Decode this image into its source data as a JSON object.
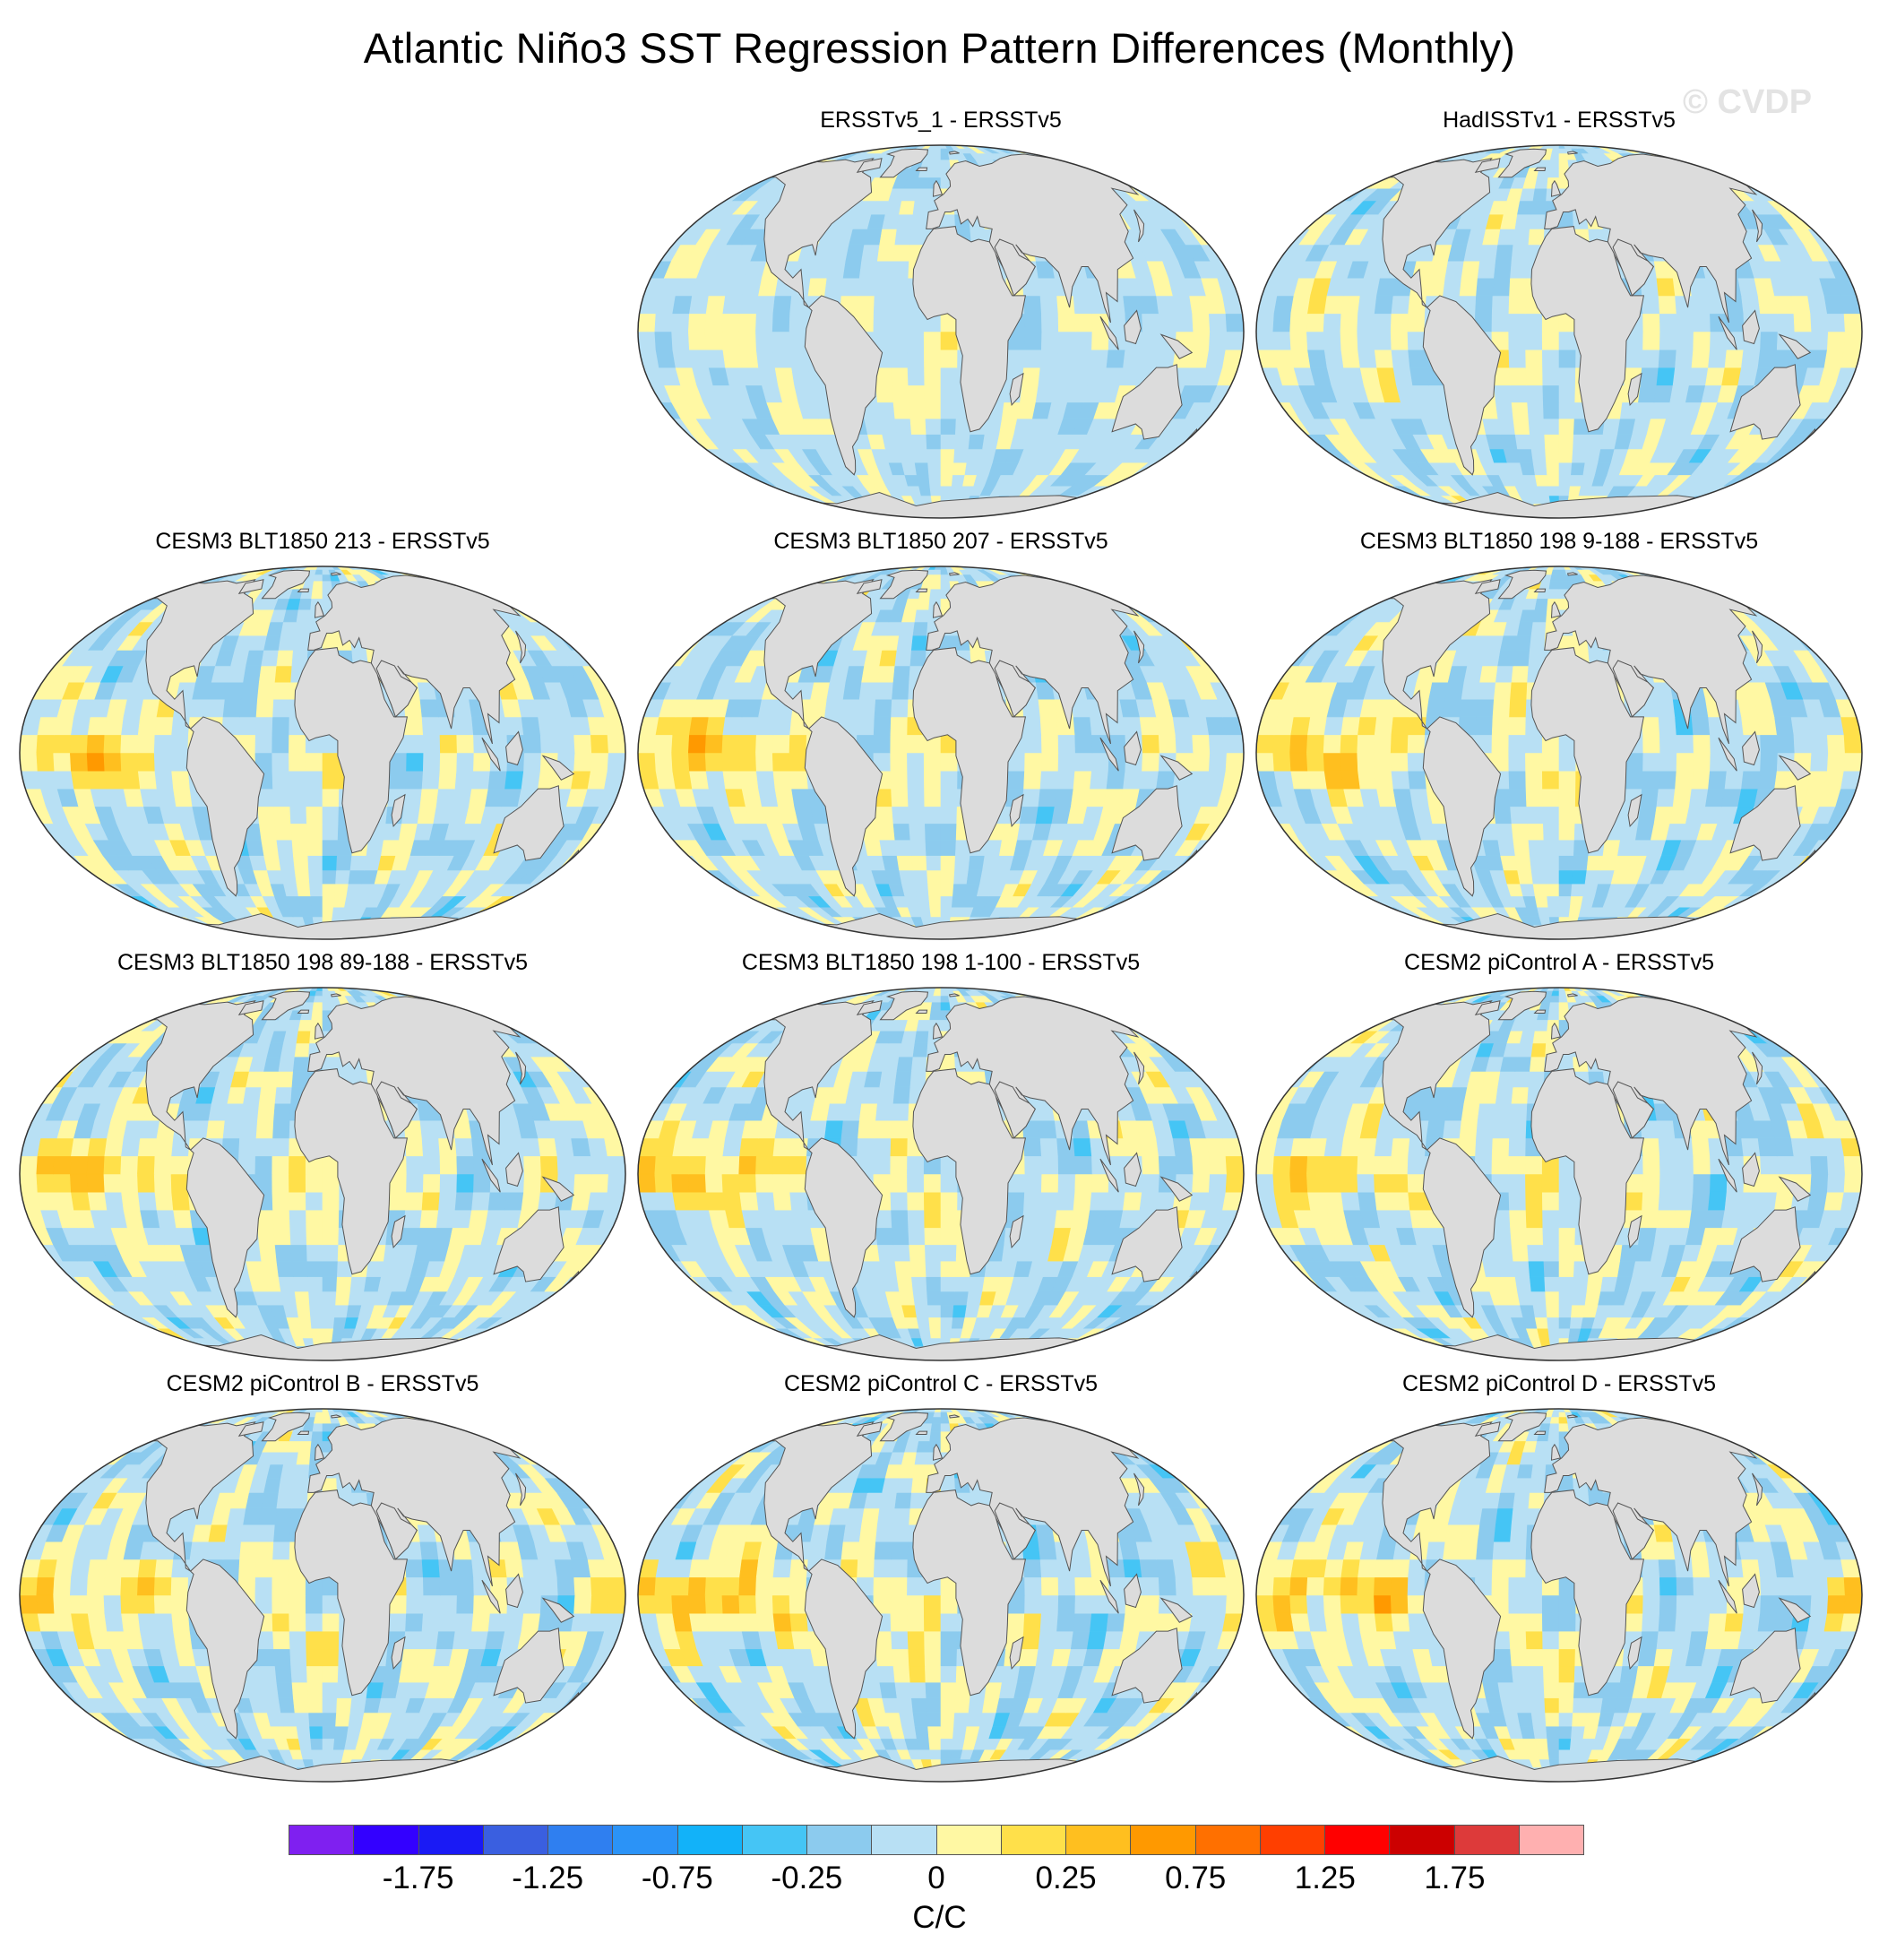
{
  "title": "Atlantic Niño3 SST Regression Pattern Differences (Monthly)",
  "watermark": "© CVDP",
  "panels": [
    {
      "title": "ERSSTv5_1 - ERSSTv5",
      "pattern": "weak"
    },
    {
      "title": "HadISSTv1 - ERSSTv5",
      "pattern": "hadisst"
    },
    {
      "title": "CESM3 BLT1850 213 - ERSSTv5",
      "pattern": "pacific_warm"
    },
    {
      "title": "CESM3 BLT1850 207 - ERSSTv5",
      "pattern": "pacific_warm"
    },
    {
      "title": "CESM3 BLT1850 198 9-188 - ERSSTv5",
      "pattern": "pacific_warm"
    },
    {
      "title": "CESM3 BLT1850 198 89-188 - ERSSTv5",
      "pattern": "pacific_warm"
    },
    {
      "title": "CESM3 BLT1850 198 1-100 - ERSSTv5",
      "pattern": "pacific_warm"
    },
    {
      "title": "CESM2 piControl A - ERSSTv5",
      "pattern": "cesm2"
    },
    {
      "title": "CESM2 piControl B - ERSSTv5",
      "pattern": "cesm2"
    },
    {
      "title": "CESM2 piControl C - ERSSTv5",
      "pattern": "cesm2_strong"
    },
    {
      "title": "CESM2 piControl D - ERSSTv5",
      "pattern": "cesm2_strong"
    }
  ],
  "colorbar": {
    "colors": [
      "#7f20f0",
      "#3300ff",
      "#1a1af5",
      "#3a5fe0",
      "#2f7ff0",
      "#2b93f7",
      "#12b2f9",
      "#45c5f5",
      "#8ccbee",
      "#b8e0f4",
      "#fff8a3",
      "#ffe04a",
      "#ffbf1f",
      "#ff9900",
      "#ff7000",
      "#ff3f00",
      "#ff0000",
      "#cc0000",
      "#dd3a3a",
      "#ffb0b0"
    ],
    "labels": [
      "-1.75",
      "-1.25",
      "-0.75",
      "-0.25",
      "0",
      "0.25",
      "0.75",
      "1.25",
      "1.75"
    ],
    "units": "C/C"
  }
}
